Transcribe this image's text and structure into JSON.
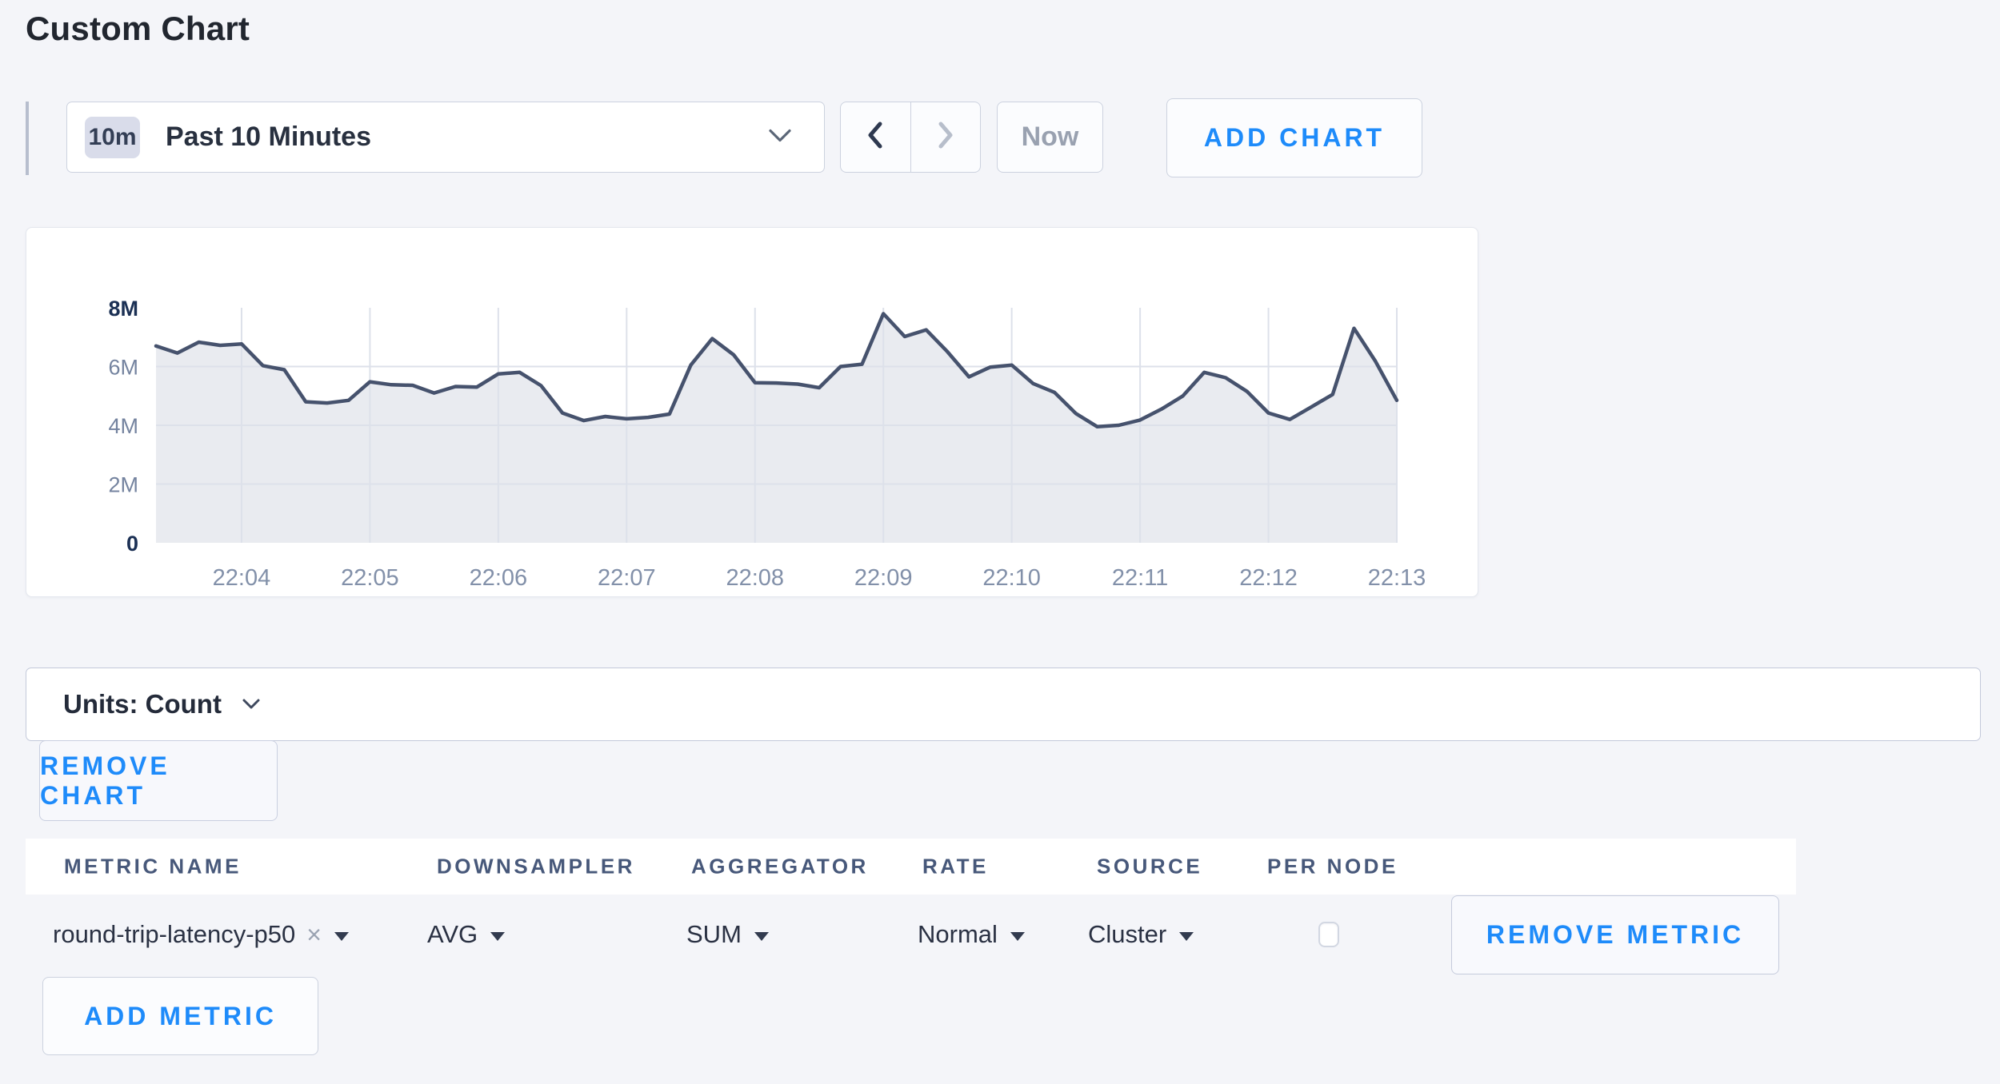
{
  "page": {
    "title": "Custom Chart"
  },
  "colors": {
    "page_bg": "#f4f5f9",
    "accent_blue": "#1e8bfa",
    "chart_line": "#46526d",
    "chart_fill": "#e9ebf0",
    "gridline": "#dde1ea"
  },
  "icons": {
    "time_selector": "chevron-down-icon",
    "units_dropdown": "chevron-down-icon",
    "prev": "chevron-left-icon",
    "next": "chevron-right-icon",
    "metric_remove_tag": "x-icon",
    "dropdown_caret": "caret-down-icon"
  },
  "toolbar": {
    "time_range_badge": "10m",
    "time_range_label": "Past 10 Minutes",
    "now_label": "Now",
    "add_chart_label": "ADD CHART"
  },
  "units_bar": {
    "label": "Units: Count"
  },
  "chart_actions": {
    "remove_chart_label": "REMOVE CHART"
  },
  "metrics_table": {
    "columns": [
      "METRIC NAME",
      "DOWNSAMPLER",
      "AGGREGATOR",
      "RATE",
      "SOURCE",
      "PER NODE"
    ],
    "row": {
      "metric_name": "round-trip-latency-p50",
      "remove_tag": "×",
      "downsampler": "AVG",
      "aggregator": "SUM",
      "rate": "Normal",
      "source": "Cluster",
      "per_node_checked": false
    },
    "remove_metric_label": "REMOVE METRIC",
    "add_metric_label": "ADD METRIC"
  },
  "chart_data": {
    "type": "area",
    "title": "",
    "unit": "Count",
    "x_start_time": "22:03:20",
    "x_interval_seconds": 10,
    "ylim": [
      0,
      8000000
    ],
    "grid": true,
    "legend": "none",
    "y_ticks": [
      {
        "label": "0",
        "value": 0,
        "strong": true
      },
      {
        "label": "2M",
        "value": 2000000,
        "strong": false
      },
      {
        "label": "4M",
        "value": 4000000,
        "strong": false
      },
      {
        "label": "6M",
        "value": 6000000,
        "strong": false
      },
      {
        "label": "8M",
        "value": 8000000,
        "strong": true
      }
    ],
    "x_ticks": [
      {
        "label": "22:04",
        "point_index": 4
      },
      {
        "label": "22:05",
        "point_index": 10
      },
      {
        "label": "22:06",
        "point_index": 16
      },
      {
        "label": "22:07",
        "point_index": 22
      },
      {
        "label": "22:08",
        "point_index": 28
      },
      {
        "label": "22:09",
        "point_index": 34
      },
      {
        "label": "22:10",
        "point_index": 40
      },
      {
        "label": "22:11",
        "point_index": 46
      },
      {
        "label": "22:12",
        "point_index": 52
      },
      {
        "label": "22:13",
        "point_index": 58
      }
    ],
    "series": [
      {
        "name": "round-trip-latency-p50",
        "aggregation": "SUM",
        "values": [
          6700000,
          6460000,
          6830000,
          6720000,
          6770000,
          6030000,
          5890000,
          4800000,
          4760000,
          4850000,
          5480000,
          5380000,
          5360000,
          5100000,
          5320000,
          5300000,
          5750000,
          5800000,
          5350000,
          4420000,
          4160000,
          4300000,
          4220000,
          4270000,
          4380000,
          6050000,
          6950000,
          6400000,
          5450000,
          5440000,
          5400000,
          5280000,
          6000000,
          6080000,
          7800000,
          7020000,
          7250000,
          6500000,
          5650000,
          5980000,
          6050000,
          5420000,
          5120000,
          4400000,
          3950000,
          4000000,
          4180000,
          4550000,
          5000000,
          5800000,
          5620000,
          5150000,
          4420000,
          4200000,
          4620000,
          5050000,
          7300000,
          6180000,
          4850000
        ]
      }
    ]
  }
}
